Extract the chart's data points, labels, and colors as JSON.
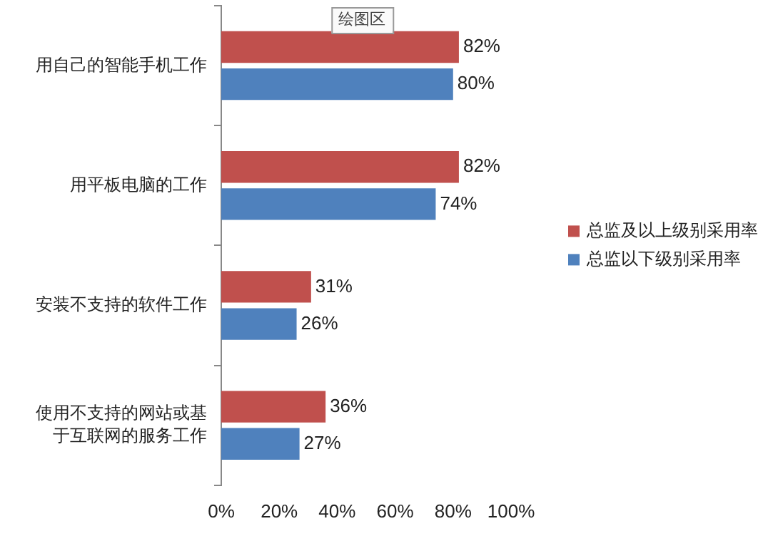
{
  "chart_data": {
    "type": "bar",
    "orientation": "horizontal",
    "categories": [
      "用自己的智能手机工作",
      "用平板电脑的工作",
      "安装不支持的软件工作",
      "使用不支持的网站或基于互联网的服务工作"
    ],
    "series": [
      {
        "name": "总监及以上级别采用率",
        "color": "#c0504d",
        "values": [
          82,
          82,
          31,
          36
        ],
        "value_labels": [
          "82%",
          "82%",
          "31%",
          "36%"
        ]
      },
      {
        "name": "总监以下级别采用率",
        "color": "#4f81bd",
        "values": [
          80,
          74,
          26,
          27
        ],
        "value_labels": [
          "80%",
          "74%",
          "26%",
          "27%"
        ]
      }
    ],
    "xlim": [
      0,
      100
    ],
    "xticks": [
      {
        "value": 0,
        "label": "0%"
      },
      {
        "value": 20,
        "label": "20%"
      },
      {
        "value": 40,
        "label": "40%"
      },
      {
        "value": 60,
        "label": "60%"
      },
      {
        "value": 80,
        "label": "80%"
      },
      {
        "value": 100,
        "label": "100%"
      }
    ],
    "grid": false,
    "legend": "right",
    "annotations": [
      "绘图区"
    ]
  }
}
